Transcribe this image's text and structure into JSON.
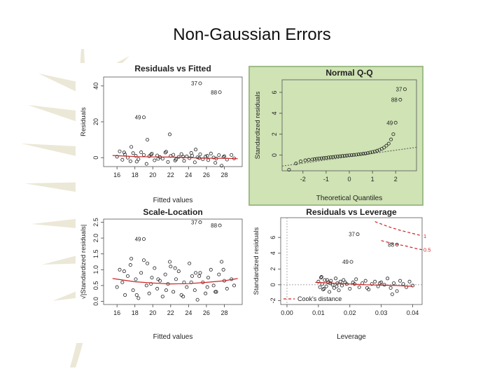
{
  "slide": {
    "title": "Non-Gaussian Errors"
  },
  "colors": {
    "highlight_bg": "#cfe3b4",
    "smoother": "#cc2222",
    "cook": "#cc2222",
    "text": "#222222"
  },
  "chart_data": [
    {
      "type": "scatter",
      "title": "Residuals vs Fitted",
      "xlabel": "Fitted values",
      "ylabel": "Residuals",
      "xlim": [
        14.5,
        30
      ],
      "ylim": [
        -5,
        45
      ],
      "xticks": [
        "16",
        "18",
        "20",
        "22",
        "24",
        "26",
        "28"
      ],
      "yticks": [
        "0",
        "20",
        "40"
      ],
      "labeled_points": [
        {
          "label": "37",
          "x": 25.3,
          "y": 41.5
        },
        {
          "label": "88",
          "x": 27.5,
          "y": 36.5
        },
        {
          "label": "49",
          "x": 19.0,
          "y": 22.5
        }
      ],
      "points": {
        "x": [
          16.0,
          16.3,
          16.6,
          16.9,
          17.2,
          17.5,
          17.8,
          18.1,
          18.4,
          18.7,
          19.0,
          19.3,
          19.6,
          19.9,
          20.2,
          20.5,
          20.8,
          21.1,
          21.4,
          21.7,
          22.0,
          22.3,
          22.6,
          22.9,
          23.2,
          23.5,
          23.8,
          24.1,
          24.4,
          24.7,
          25.0,
          25.3,
          25.6,
          25.9,
          26.2,
          26.5,
          26.8,
          27.1,
          27.4,
          27.7,
          28.0,
          28.3,
          16.8,
          18.2,
          19.8,
          20.6,
          21.5,
          22.5,
          23.4,
          24.3,
          25.2,
          26.1,
          27.0,
          27.9,
          28.8,
          29.1,
          17.6,
          19.4,
          21.9,
          24.8
        ],
        "y": [
          0.5,
          3.5,
          -1.2,
          1.8,
          0.0,
          -2.0,
          2.5,
          1.0,
          -0.8,
          3.0,
          1.5,
          -3.5,
          0.8,
          2.2,
          -1.5,
          1.2,
          0.3,
          -0.6,
          2.8,
          -2.4,
          0.9,
          1.6,
          -1.0,
          0.4,
          2.0,
          -1.8,
          0.7,
          -0.3,
          1.1,
          -2.6,
          0.2,
          1.9,
          -0.9,
          0.6,
          -1.4,
          2.3,
          0.1,
          -0.5,
          1.4,
          -4.5,
          0.8,
          -1.1,
          2.9,
          -2.2,
          1.7,
          -0.7,
          3.3,
          -1.6,
          0.5,
          2.6,
          -0.2,
          1.0,
          -2.9,
          0.3,
          1.5,
          -0.4,
          6.0,
          10.0,
          13.0,
          4.5
        ]
      },
      "smoother": {
        "x": [
          15.5,
          18,
          20,
          22,
          24,
          26,
          28,
          29.5
        ],
        "y": [
          1.2,
          0.6,
          0.4,
          0.3,
          0.0,
          -0.3,
          -0.4,
          -0.6
        ]
      }
    },
    {
      "type": "scatter",
      "title": "Normal Q-Q",
      "xlabel": "Theoretical Quantiles",
      "ylabel": "Standardized residuals",
      "xlim": [
        -2.9,
        2.9
      ],
      "ylim": [
        -1.5,
        7.2
      ],
      "xticks": [
        "-2",
        "-1",
        "0",
        "1",
        "2"
      ],
      "yticks": [
        "0",
        "2",
        "4",
        "6"
      ],
      "labeled_points": [
        {
          "label": "37",
          "x": 2.4,
          "y": 6.3
        },
        {
          "label": "88",
          "x": 2.2,
          "y": 5.3
        },
        {
          "label": "49",
          "x": 2.0,
          "y": 3.1
        }
      ],
      "reference_line": {
        "x": [
          -2.9,
          2.9
        ],
        "y": [
          -1.05,
          0.75
        ]
      },
      "points": {
        "x": [
          -2.6,
          -2.3,
          -2.1,
          -1.9,
          -1.75,
          -1.6,
          -1.5,
          -1.4,
          -1.3,
          -1.2,
          -1.1,
          -1.0,
          -0.9,
          -0.8,
          -0.7,
          -0.6,
          -0.5,
          -0.4,
          -0.3,
          -0.2,
          -0.1,
          0.0,
          0.1,
          0.2,
          0.3,
          0.4,
          0.5,
          0.6,
          0.7,
          0.8,
          0.9,
          1.0,
          1.1,
          1.2,
          1.3,
          1.4,
          1.5,
          1.6,
          1.7,
          1.8,
          1.9
        ],
        "y": [
          -1.4,
          -0.8,
          -0.6,
          -0.5,
          -0.45,
          -0.42,
          -0.38,
          -0.35,
          -0.32,
          -0.3,
          -0.28,
          -0.25,
          -0.22,
          -0.2,
          -0.18,
          -0.15,
          -0.12,
          -0.1,
          -0.08,
          -0.06,
          -0.04,
          -0.02,
          0.0,
          0.02,
          0.04,
          0.07,
          0.1,
          0.13,
          0.16,
          0.2,
          0.25,
          0.3,
          0.35,
          0.42,
          0.5,
          0.6,
          0.72,
          0.9,
          1.1,
          1.5,
          2.0
        ]
      }
    },
    {
      "type": "scatter",
      "title": "Scale-Location",
      "xlabel": "Fitted values",
      "ylabel": "√|Standardized residuals|",
      "xlim": [
        14.5,
        30
      ],
      "ylim": [
        -0.1,
        2.6
      ],
      "xticks": [
        "16",
        "18",
        "20",
        "22",
        "24",
        "26",
        "28"
      ],
      "yticks": [
        "0.0",
        "0.5",
        "1.0",
        "1.5",
        "2.0",
        "2.5"
      ],
      "labeled_points": [
        {
          "label": "37",
          "x": 25.3,
          "y": 2.5
        },
        {
          "label": "88",
          "x": 27.5,
          "y": 2.4
        },
        {
          "label": "49",
          "x": 19.0,
          "y": 1.97
        }
      ],
      "points": {
        "x": [
          16.0,
          16.3,
          16.6,
          16.9,
          17.2,
          17.5,
          17.8,
          18.1,
          18.4,
          18.7,
          19.0,
          19.3,
          19.6,
          19.9,
          20.2,
          20.5,
          20.8,
          21.1,
          21.4,
          21.7,
          22.0,
          22.3,
          22.6,
          22.9,
          23.2,
          23.5,
          23.8,
          24.1,
          24.4,
          24.7,
          25.0,
          25.3,
          25.6,
          25.9,
          26.2,
          26.5,
          26.8,
          27.1,
          27.4,
          27.7,
          28.0,
          28.3,
          16.8,
          18.2,
          19.8,
          20.6,
          21.5,
          22.5,
          23.4,
          24.3,
          25.2,
          26.1,
          27.0,
          27.9,
          28.8,
          29.1,
          17.6,
          19.4,
          21.9,
          24.8
        ],
        "y": [
          0.45,
          1.0,
          0.6,
          0.2,
          0.8,
          1.15,
          0.35,
          0.7,
          0.1,
          0.9,
          1.3,
          0.5,
          0.25,
          0.75,
          1.05,
          0.4,
          0.65,
          0.15,
          0.85,
          0.55,
          1.1,
          0.3,
          0.7,
          0.95,
          0.2,
          0.6,
          0.45,
          1.2,
          0.8,
          0.35,
          0.05,
          0.9,
          0.6,
          0.25,
          0.75,
          1.0,
          0.5,
          0.3,
          0.85,
          1.25,
          0.65,
          0.4,
          0.95,
          0.2,
          0.55,
          0.7,
          0.35,
          1.05,
          0.15,
          0.6,
          0.8,
          0.45,
          0.3,
          1.0,
          0.7,
          0.5,
          1.35,
          1.2,
          1.25,
          0.9
        ]
      },
      "smoother": {
        "x": [
          15.5,
          18,
          20,
          22,
          24,
          26,
          28,
          29.5
        ],
        "y": [
          0.72,
          0.62,
          0.58,
          0.55,
          0.56,
          0.6,
          0.65,
          0.72
        ]
      }
    },
    {
      "type": "scatter",
      "title": "Residuals vs Leverage",
      "xlabel": "Leverage",
      "ylabel": "Standardized residuals",
      "xlim": [
        -0.002,
        0.043
      ],
      "ylim": [
        -2.5,
        8.5
      ],
      "xticks": [
        "0.00",
        "0.01",
        "0.02",
        "0.03",
        "0.04"
      ],
      "yticks": [
        "-2",
        "0",
        "2",
        "4",
        "6"
      ],
      "labeled_points": [
        {
          "label": "37",
          "x": 0.0225,
          "y": 6.4
        },
        {
          "label": "88",
          "x": 0.035,
          "y": 5.1
        },
        {
          "label": "49",
          "x": 0.0205,
          "y": 2.9
        }
      ],
      "cook_contours": [
        {
          "label": "1",
          "x": [
            0.028,
            0.032,
            0.036,
            0.04,
            0.043
          ],
          "y": [
            8.0,
            7.4,
            6.9,
            6.5,
            6.2
          ]
        },
        {
          "label": "0.5",
          "x": [
            0.03,
            0.034,
            0.038,
            0.041,
            0.043
          ],
          "y": [
            5.6,
            5.2,
            4.9,
            4.6,
            4.45
          ]
        }
      ],
      "legend": [
        "Cook's distance"
      ],
      "points": {
        "x": [
          0.01,
          0.0105,
          0.011,
          0.0112,
          0.0115,
          0.012,
          0.0125,
          0.013,
          0.0135,
          0.014,
          0.0145,
          0.015,
          0.0155,
          0.016,
          0.0165,
          0.017,
          0.0175,
          0.018,
          0.019,
          0.02,
          0.021,
          0.022,
          0.023,
          0.024,
          0.025,
          0.026,
          0.027,
          0.028,
          0.029,
          0.03,
          0.031,
          0.032,
          0.033,
          0.034,
          0.035,
          0.036,
          0.037,
          0.038,
          0.039,
          0.04,
          0.0108,
          0.0118,
          0.0128,
          0.0138,
          0.0158,
          0.0185,
          0.0215,
          0.0255,
          0.0295,
          0.0335
        ],
        "y": [
          0.4,
          -0.3,
          1.0,
          0.1,
          -0.6,
          0.6,
          -0.2,
          0.3,
          -0.9,
          0.5,
          0.0,
          -0.4,
          0.8,
          0.2,
          -0.7,
          0.4,
          -0.1,
          0.6,
          0.1,
          -0.5,
          0.3,
          0.7,
          -0.3,
          0.2,
          0.5,
          -0.6,
          0.1,
          0.4,
          -0.2,
          0.3,
          0.0,
          0.8,
          -0.4,
          0.2,
          -0.8,
          0.5,
          0.1,
          -0.3,
          0.4,
          -0.1,
          0.9,
          -0.5,
          0.6,
          0.2,
          -0.2,
          0.3,
          0.1,
          -0.4,
          0.2,
          -1.2
        ]
      },
      "smoother": {
        "x": [
          0.009,
          0.015,
          0.02,
          0.025,
          0.03,
          0.035,
          0.04
        ],
        "y": [
          0.3,
          0.2,
          0.1,
          0.0,
          -0.05,
          -0.1,
          -0.2
        ]
      }
    }
  ]
}
